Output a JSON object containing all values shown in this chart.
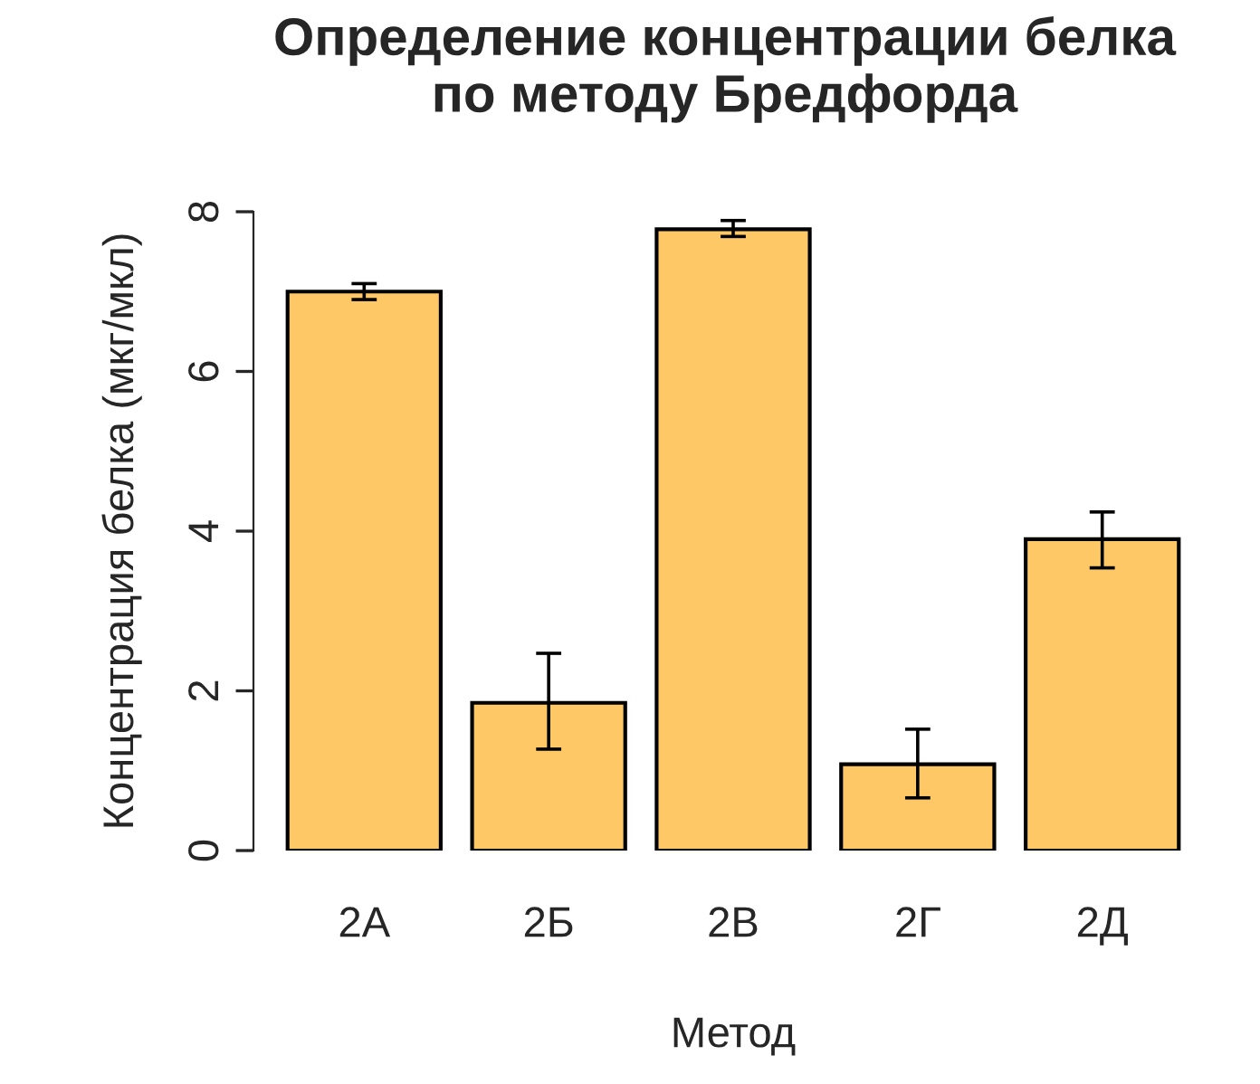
{
  "chart_data": {
    "type": "bar",
    "title": "Определение концентрации белка\nпо методу Бредфорда",
    "xlabel": "Метод",
    "ylabel": "Концентрация белка (мкг/мкл)",
    "categories": [
      "2А",
      "2Б",
      "2В",
      "2Г",
      "2Д"
    ],
    "values": [
      7.0,
      1.85,
      7.78,
      1.08,
      3.9
    ],
    "errors": [
      [
        6.9,
        7.1
      ],
      [
        1.27,
        2.47
      ],
      [
        7.69,
        7.89
      ],
      [
        0.66,
        1.52
      ],
      [
        3.54,
        4.24
      ]
    ],
    "color": "#fdc865",
    "ylim": [
      0,
      8
    ],
    "yticks": [
      0,
      2,
      4,
      6,
      8
    ],
    "grid": false
  }
}
